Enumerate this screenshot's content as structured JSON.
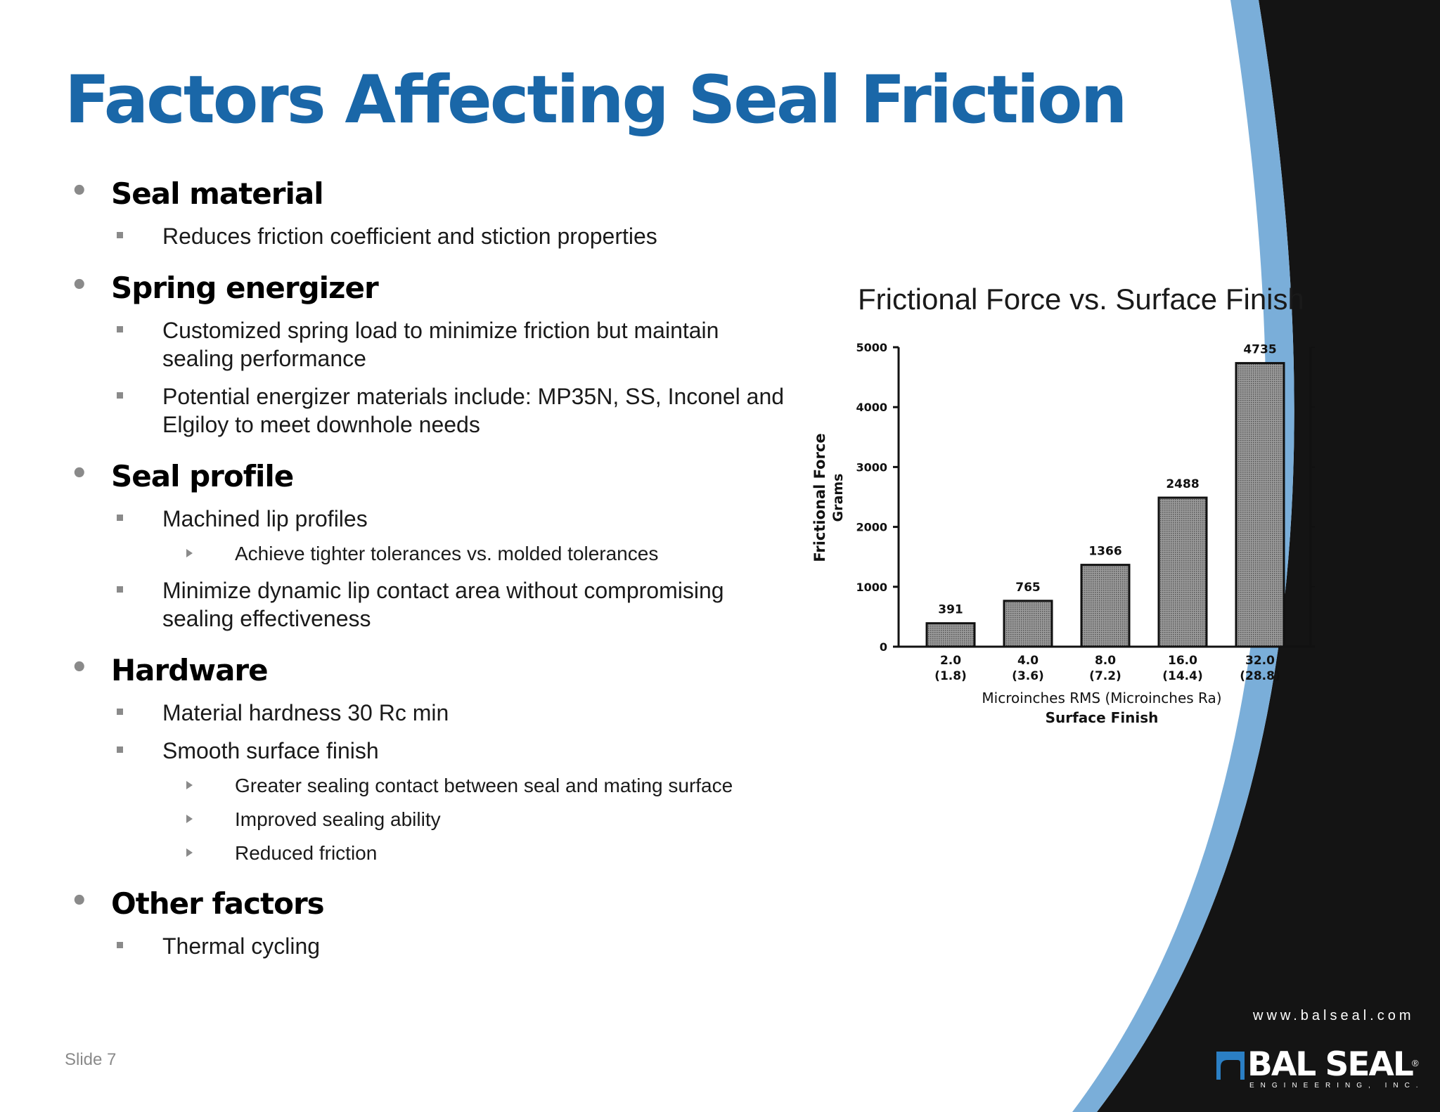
{
  "slide": {
    "title": "Factors Affecting Seal Friction",
    "slide_number": "Slide 7"
  },
  "bullets": [
    {
      "level": 1,
      "text": "Seal material"
    },
    {
      "level": 2,
      "text": "Reduces friction coefficient and stiction properties"
    },
    {
      "level": 1,
      "text": "Spring energizer"
    },
    {
      "level": 2,
      "text": "Customized spring load to minimize friction but maintain sealing performance"
    },
    {
      "level": 2,
      "text": "Potential energizer materials include: MP35N, SS, Inconel and Elgiloy to meet downhole needs"
    },
    {
      "level": 1,
      "text": "Seal profile"
    },
    {
      "level": 2,
      "text": "Machined lip profiles"
    },
    {
      "level": 3,
      "text": "Achieve tighter tolerances vs. molded tolerances"
    },
    {
      "level": 2,
      "text": "Minimize dynamic lip contact area without compromising sealing effectiveness"
    },
    {
      "level": 1,
      "text": "Hardware"
    },
    {
      "level": 2,
      "text": "Material hardness 30 Rc min"
    },
    {
      "level": 2,
      "text": "Smooth surface finish"
    },
    {
      "level": 3,
      "text": "Greater sealing contact between seal and mating surface"
    },
    {
      "level": 3,
      "text": "Improved sealing ability"
    },
    {
      "level": 3,
      "text": "Reduced friction"
    },
    {
      "level": 1,
      "text": "Other factors"
    },
    {
      "level": 2,
      "text": "Thermal cycling"
    }
  ],
  "chart_data": {
    "type": "bar",
    "title": "Frictional Force vs. Surface Finish",
    "ylabel_line1": "Frictional Force",
    "ylabel_line2": "Grams",
    "xlabel_line1": "Microinches RMS (Microinches Ra)",
    "xlabel_line2": "Surface Finish",
    "categories": [
      "2.0",
      "4.0",
      "8.0",
      "16.0",
      "32.0"
    ],
    "categories_secondary": [
      "(1.8)",
      "(3.6)",
      "(7.2)",
      "(14.4)",
      "(28.8)"
    ],
    "values": [
      391,
      765,
      1366,
      2488,
      4735
    ],
    "data_labels": [
      "391",
      "765",
      "1366",
      "2488",
      "4735"
    ],
    "yticks": [
      0,
      1000,
      2000,
      3000,
      4000,
      5000
    ],
    "ylim": [
      0,
      5000
    ],
    "grid": false,
    "bar_color": "#8e8e8e"
  },
  "footer": {
    "url": "www.balseal.com",
    "logo_name": "BAL SEAL",
    "logo_subtitle": "ENGINEERING, INC.",
    "logo_mark": "®"
  },
  "colors": {
    "title": "#1a67a8",
    "arc_blue": "#7aaed9",
    "dark_panel": "#141414",
    "logo_blue": "#2b7fc4"
  }
}
